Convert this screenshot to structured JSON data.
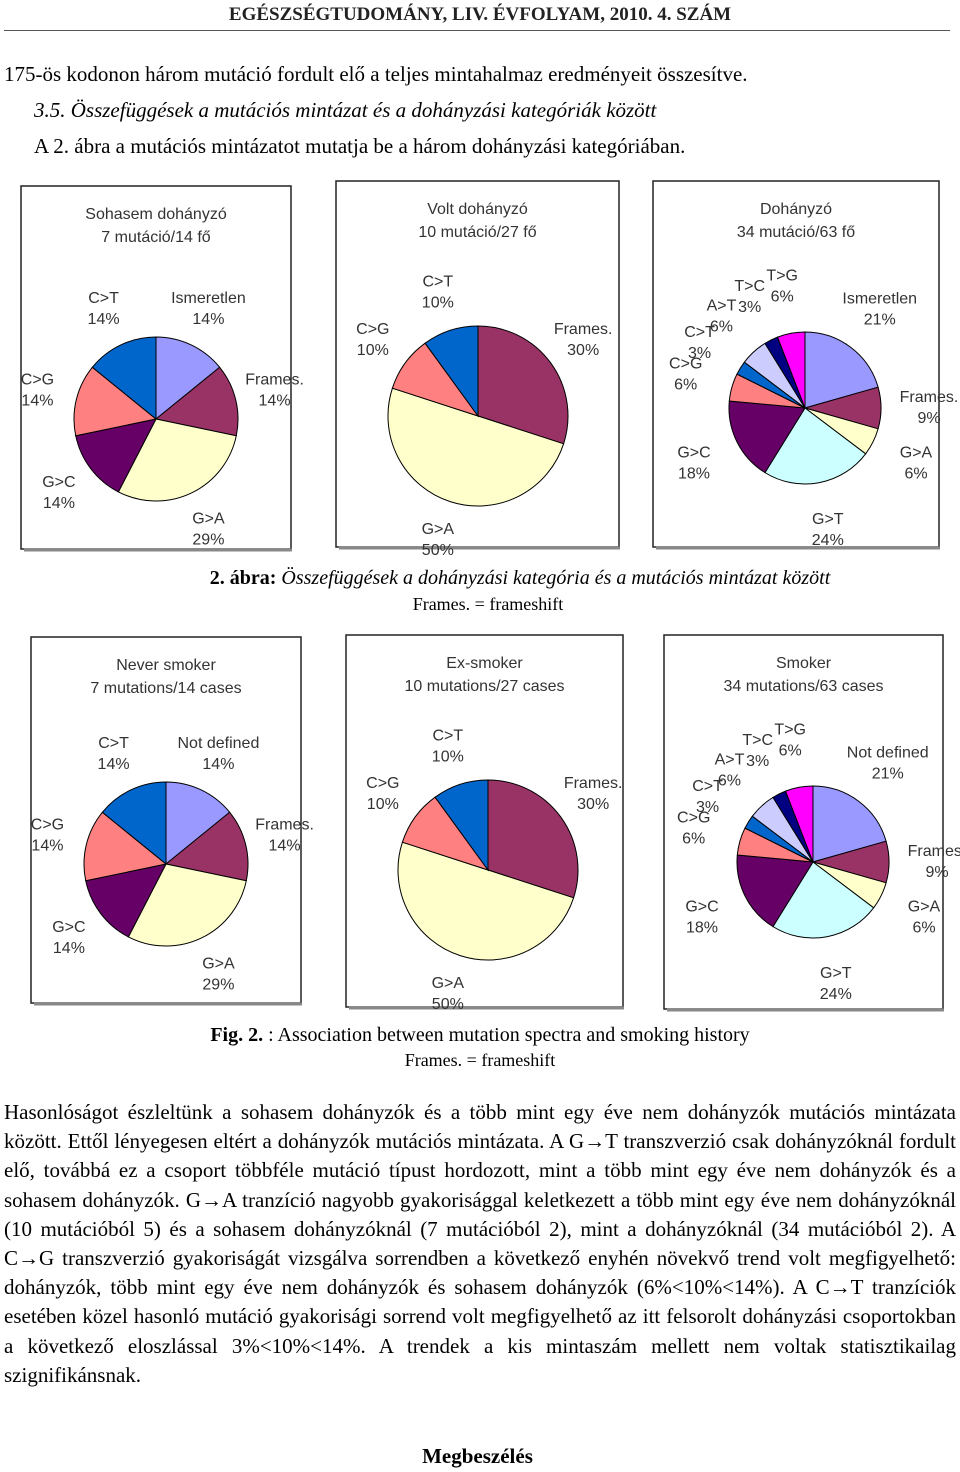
{
  "header": {
    "title": "EGÉSZSÉGTUDOMÁNY, LIV. ÉVFOLYAM, 2010. 4. SZÁM"
  },
  "intro": [
    "175-ös kodonon három mutáció fordult elő a teljes mintahalmaz eredményeit összesítve.",
    "3.5. Összefüggések a mutációs mintázat és a dohányzási kategóriák között",
    "A 2. ábra a mutációs mintázatot mutatja be a három dohányzási kategóriában."
  ],
  "chart_data": [
    {
      "type": "pie",
      "title": "Sohasem dohányzó",
      "subtitle": "7 mutáció/14 fő",
      "categories": [
        "Ismeretlen",
        "Frames.",
        "G>A",
        "G>C",
        "C>G",
        "C>T"
      ],
      "values": [
        14,
        14,
        29,
        14,
        14,
        14
      ],
      "value_labels": [
        "14%",
        "14%",
        "29%",
        "14%",
        "14%",
        "14%"
      ],
      "colors": [
        "#9999ff",
        "#993366",
        "#ffffcc",
        "#660066",
        "#ff8080",
        "#0066cc"
      ]
    },
    {
      "type": "pie",
      "title": "Volt dohányzó",
      "subtitle": "10 mutáció/27 fő",
      "categories": [
        "Frames.",
        "G>A",
        "C>G",
        "C>T"
      ],
      "values": [
        30,
        50,
        10,
        10
      ],
      "value_labels": [
        "30%",
        "50%",
        "10%",
        "10%"
      ],
      "colors": [
        "#993366",
        "#ffffcc",
        "#ff8080",
        "#0066cc"
      ]
    },
    {
      "type": "pie",
      "title": "Dohányzó",
      "subtitle": "34 mutáció/63 fő",
      "categories": [
        "Ismeretlen",
        "Frames.",
        "G>A",
        "G>T",
        "G>C",
        "C>G",
        "C>T",
        "A>T",
        "T>C",
        "T>G"
      ],
      "values": [
        21,
        9,
        6,
        24,
        18,
        6,
        3,
        6,
        3,
        6
      ],
      "value_labels": [
        "21%",
        "9%",
        "6%",
        "24%",
        "18%",
        "6%",
        "3%",
        "6%",
        "3%",
        "6%"
      ],
      "colors": [
        "#9999ff",
        "#993366",
        "#ffffcc",
        "#ccffff",
        "#660066",
        "#ff8080",
        "#0066cc",
        "#ccccff",
        "#000080",
        "#ff00ff"
      ]
    },
    {
      "type": "pie",
      "title": "Never smoker",
      "subtitle": "7 mutations/14 cases",
      "categories": [
        "Not defined",
        "Frames.",
        "G>A",
        "G>C",
        "C>G",
        "C>T"
      ],
      "values": [
        14,
        14,
        29,
        14,
        14,
        14
      ],
      "value_labels": [
        "14%",
        "14%",
        "29%",
        "14%",
        "14%",
        "14%"
      ],
      "colors": [
        "#9999ff",
        "#993366",
        "#ffffcc",
        "#660066",
        "#ff8080",
        "#0066cc"
      ]
    },
    {
      "type": "pie",
      "title": "Ex-smoker",
      "subtitle": "10 mutations/27 cases",
      "categories": [
        "Frames.",
        "G>A",
        "C>G",
        "C>T"
      ],
      "values": [
        30,
        50,
        10,
        10
      ],
      "value_labels": [
        "30%",
        "50%",
        "10%",
        "10%"
      ],
      "colors": [
        "#993366",
        "#ffffcc",
        "#ff8080",
        "#0066cc"
      ]
    },
    {
      "type": "pie",
      "title": "Smoker",
      "subtitle": "34 mutations/63 cases",
      "categories": [
        "Not defined",
        "Frames.",
        "G>A",
        "G>T",
        "G>C",
        "C>G",
        "C>T",
        "A>T",
        "T>C",
        "T>G"
      ],
      "values": [
        21,
        9,
        6,
        24,
        18,
        6,
        3,
        6,
        3,
        6
      ],
      "value_labels": [
        "21%",
        "9%",
        "6%",
        "24%",
        "18%",
        "6%",
        "3%",
        "6%",
        "3%",
        "6%"
      ],
      "colors": [
        "#9999ff",
        "#993366",
        "#ffffcc",
        "#ccffff",
        "#660066",
        "#ff8080",
        "#0066cc",
        "#ccccff",
        "#000080",
        "#ff00ff"
      ]
    }
  ],
  "caption_hu": {
    "label": "2. ábra:",
    "text": "Összefüggések a dohányzási kategória és a mutációs mintázat között",
    "note": "Frames. = frameshift"
  },
  "caption_en": {
    "label": "Fig. 2.",
    "text": ": Association between mutation spectra and smoking history",
    "note": "Frames. = frameshift"
  },
  "body": {
    "paragraph": "Hasonlóságot észleltünk a sohasem dohányzók és a több mint egy éve nem dohányzók mutációs mintázata között. Ettől lényegesen eltért a dohányzók mutációs mintázata. A G→T transzverzió csak dohányzóknál fordult elő, továbbá ez a csoport többféle mutáció típust hordozott, mint a több mint egy éve nem dohányzók és a sohasem dohányzók. G→A tranzíció nagyobb gyakorisággal keletkezett a több mint egy éve nem dohányzóknál (10 mutációból 5) és a sohasem dohányzóknál (7 mutációból 2), mint a dohányzóknál (34 mutációból 2). A C→G transzverzió gyakoriságát vizsgálva sorrendben a következő enyhén növekvő trend volt megfigyelhető: dohányzók, több mint egy éve nem dohányzók és sohasem dohányzók (6%<10%<14%). A C→T tranzíciók esetében közel hasonló mutáció gyakorisági sorrend volt megfigyelhető az itt felsorolt dohányzási csoportokban a következő eloszlással 3%<10%<14%. A trendek a kis mintaszám mellett nem voltak statisztikailag szignifikánsnak.",
    "heading": "Megbeszélés"
  }
}
